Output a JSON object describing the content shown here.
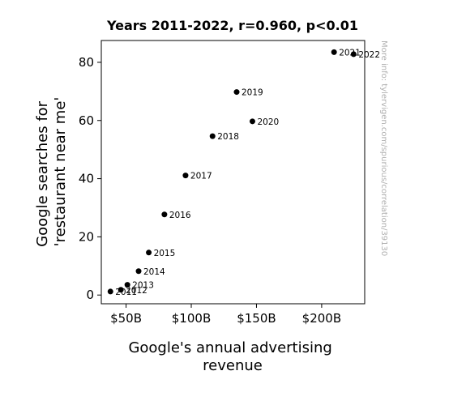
{
  "chart_data": {
    "type": "scatter",
    "title": "Years 2011-2022, r=0.960, p<0.01",
    "xlabel_lines": [
      "Google's annual advertising",
      "revenue"
    ],
    "ylabel_lines": [
      "Google searches for",
      "'restaurant near me'"
    ],
    "xlim": [
      31,
      233
    ],
    "ylim": [
      -3,
      87.5
    ],
    "xticks": [
      {
        "value": 50,
        "label": "$50B"
      },
      {
        "value": 100,
        "label": "$100B"
      },
      {
        "value": 150,
        "label": "$150B"
      },
      {
        "value": 200,
        "label": "$200B"
      }
    ],
    "yticks": [
      {
        "value": 0,
        "label": "0"
      },
      {
        "value": 20,
        "label": "20"
      },
      {
        "value": 40,
        "label": "40"
      },
      {
        "value": 60,
        "label": "60"
      },
      {
        "value": 80,
        "label": "80"
      }
    ],
    "points": [
      {
        "label": "2011",
        "x": 38.0,
        "y": 1.2
      },
      {
        "label": "2012",
        "x": 46.0,
        "y": 1.8
      },
      {
        "label": "2013",
        "x": 51.0,
        "y": 3.5
      },
      {
        "label": "2014",
        "x": 59.6,
        "y": 8.2
      },
      {
        "label": "2015",
        "x": 67.4,
        "y": 14.6
      },
      {
        "label": "2016",
        "x": 79.4,
        "y": 27.7
      },
      {
        "label": "2017",
        "x": 95.6,
        "y": 41.1
      },
      {
        "label": "2018",
        "x": 116.3,
        "y": 54.6
      },
      {
        "label": "2019",
        "x": 134.8,
        "y": 69.8
      },
      {
        "label": "2020",
        "x": 146.9,
        "y": 59.7
      },
      {
        "label": "2021",
        "x": 209.5,
        "y": 83.5
      },
      {
        "label": "2022",
        "x": 224.5,
        "y": 82.8
      }
    ],
    "grid": false,
    "marker_color": "#000000"
  },
  "watermark": "More info: tylervigen.com/spurious/correlation/39130"
}
